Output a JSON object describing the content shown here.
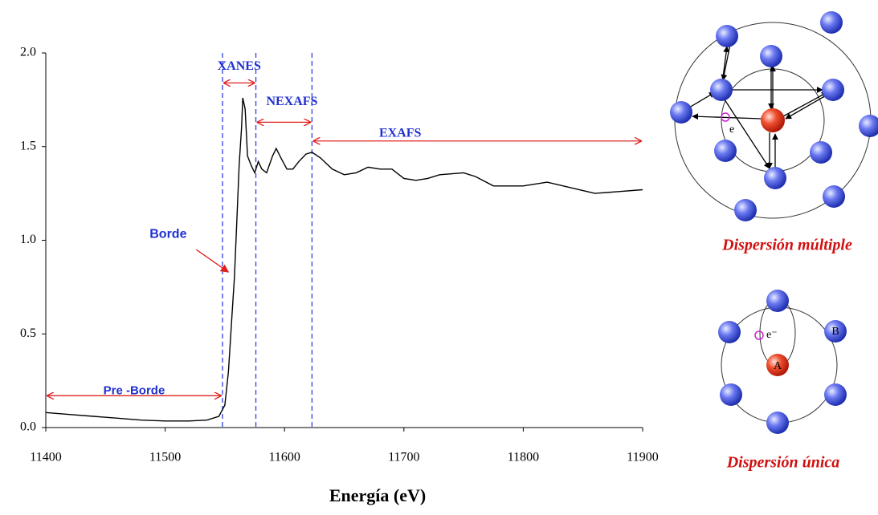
{
  "chart_data": {
    "type": "line",
    "x": [
      11400,
      11420,
      11440,
      11460,
      11480,
      11500,
      11520,
      11535,
      11545,
      11550,
      11553,
      11556,
      11558,
      11560,
      11562,
      11564,
      11565,
      11567,
      11569,
      11572,
      11575,
      11578,
      11581,
      11585,
      11590,
      11593,
      11597,
      11602,
      11607,
      11612,
      11618,
      11623,
      11630,
      11640,
      11650,
      11660,
      11670,
      11680,
      11690,
      11700,
      11710,
      11720,
      11730,
      11750,
      11760,
      11775,
      11800,
      11820,
      11840,
      11860,
      11880,
      11900
    ],
    "series": [
      {
        "color": "#000000",
        "values": [
          0.08,
          0.07,
          0.06,
          0.05,
          0.04,
          0.035,
          0.035,
          0.04,
          0.06,
          0.12,
          0.3,
          0.6,
          0.8,
          1.1,
          1.4,
          1.6,
          1.76,
          1.7,
          1.45,
          1.4,
          1.36,
          1.42,
          1.38,
          1.36,
          1.45,
          1.49,
          1.44,
          1.38,
          1.38,
          1.42,
          1.46,
          1.47,
          1.44,
          1.38,
          1.35,
          1.36,
          1.39,
          1.38,
          1.38,
          1.33,
          1.32,
          1.33,
          1.35,
          1.36,
          1.34,
          1.29,
          1.29,
          1.31,
          1.28,
          1.25,
          1.26,
          1.27
        ]
      }
    ],
    "xlabel": "Energía (eV)",
    "xlim": [
      11400,
      11900
    ],
    "xticks": [
      11400,
      11500,
      11600,
      11700,
      11800,
      11900
    ],
    "ylim": [
      0,
      2
    ],
    "yticks": [
      {
        "value": 0,
        "label": "0.0"
      },
      0.5,
      {
        "value": 1,
        "label": "1.0"
      },
      1.5,
      {
        "value": 2,
        "label": "2.0"
      }
    ],
    "vlines": [
      11548,
      11576,
      11623
    ],
    "regions": [
      {
        "text": "XANES",
        "x": [
          11548,
          11576
        ],
        "y": 1.84
      },
      {
        "text": "NEXAFS",
        "x": [
          11576,
          11623
        ],
        "y": 1.63
      },
      {
        "text": "EXAFS",
        "x": [
          11623,
          11900
        ],
        "y": 1.53
      },
      {
        "text": "Pre -Borde",
        "x": [
          11400,
          11548
        ],
        "y": 0.17
      }
    ],
    "edge": {
      "text": "Borde",
      "x": 11553,
      "y": 0.83
    }
  },
  "diagrams": {
    "multiple": {
      "electron": "e",
      "caption": "Dispersión múltiple"
    },
    "single": {
      "electron": "e⁻",
      "absorber": "A",
      "scatterer": "B",
      "caption": "Dispersión única"
    }
  }
}
